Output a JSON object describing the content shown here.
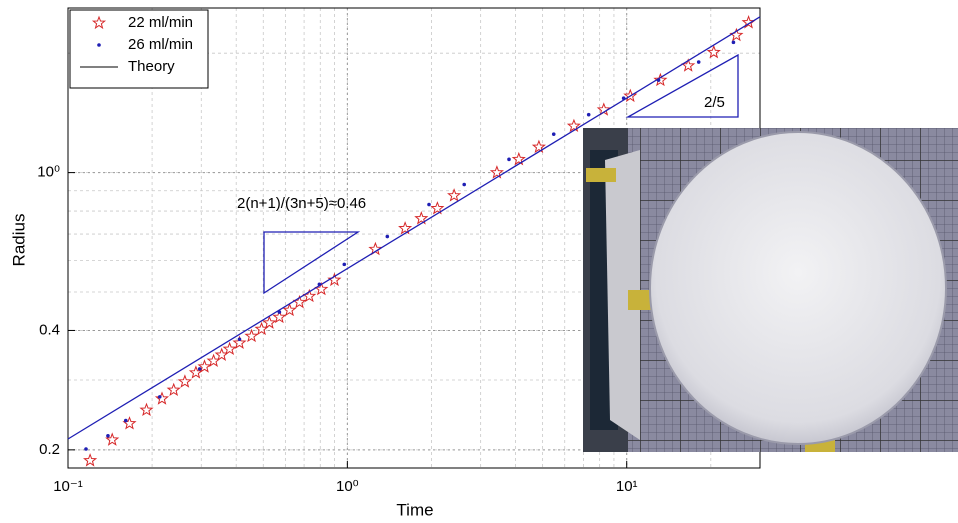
{
  "chart_data": {
    "type": "scatter",
    "log_x": true,
    "log_y": true,
    "grid": true,
    "x_label": "Time",
    "y_label": "Radius",
    "xlim": [
      0.1,
      30
    ],
    "ylim": [
      0.18,
      2.6
    ],
    "xticks": [
      {
        "value": 0.1,
        "label": "10⁻¹"
      },
      {
        "value": 1,
        "label": "10⁰"
      },
      {
        "value": 10,
        "label": "10¹"
      }
    ],
    "yticks": [
      0.2,
      0.4,
      {
        "value": 1,
        "label": "10⁰"
      }
    ],
    "legend": "top-left",
    "annotations": [
      "2(n+1)/(3n+5)≈0.46",
      "2/5"
    ],
    "series": [
      {
        "name": "22 ml/min",
        "color": "#d62728",
        "marker": "star",
        "x": [
          0.12,
          0.144,
          0.166,
          0.191,
          0.217,
          0.239,
          0.262,
          0.287,
          0.308,
          0.332,
          0.355,
          0.379,
          0.411,
          0.454,
          0.493,
          0.526,
          0.571,
          0.621,
          0.674,
          0.731,
          0.807,
          0.899,
          1.26,
          1.61,
          1.84,
          2.1,
          2.41,
          3.43,
          4.11,
          4.85,
          6.47,
          8.28,
          10.3,
          13.2,
          16.6,
          20.5,
          24.7,
          27.3
        ],
        "values": [
          0.188,
          0.212,
          0.233,
          0.252,
          0.269,
          0.283,
          0.297,
          0.313,
          0.324,
          0.335,
          0.347,
          0.359,
          0.372,
          0.387,
          0.403,
          0.418,
          0.432,
          0.45,
          0.471,
          0.488,
          0.508,
          0.536,
          0.641,
          0.723,
          0.766,
          0.812,
          0.875,
          1.0,
          1.08,
          1.16,
          1.31,
          1.44,
          1.56,
          1.71,
          1.86,
          2.01,
          2.22,
          2.39
        ]
      },
      {
        "name": "26 ml/min",
        "color": "#1f1fb4",
        "marker": "dot",
        "x": [
          0.116,
          0.139,
          0.161,
          0.213,
          0.296,
          0.411,
          0.571,
          0.794,
          0.975,
          1.39,
          1.96,
          2.62,
          3.79,
          5.48,
          7.31,
          9.75,
          13.0,
          18.1,
          24.1
        ],
        "values": [
          0.201,
          0.217,
          0.237,
          0.272,
          0.32,
          0.38,
          0.445,
          0.523,
          0.587,
          0.69,
          0.831,
          0.933,
          1.08,
          1.25,
          1.4,
          1.54,
          1.71,
          1.9,
          2.13
        ]
      },
      {
        "name": "Theory",
        "color": "#1f1fb4",
        "marker": "line",
        "x": [
          0.1,
          30
        ],
        "values": [
          0.213,
          2.47
        ]
      }
    ]
  }
}
